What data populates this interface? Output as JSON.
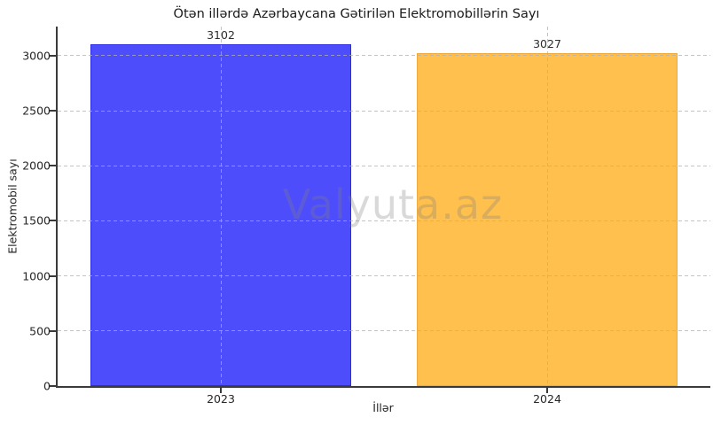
{
  "title": "Ötən illərdə Azərbaycana Gətirilən Elektromobillərin Sayı",
  "watermark": "Valyuta.az",
  "chart_data": {
    "type": "bar",
    "categories": [
      "2023",
      "2024"
    ],
    "values": [
      3102,
      3027
    ],
    "bar_labels": [
      "3102",
      "3027"
    ],
    "title": "Ötən illərdə Azərbaycana Gətirilən Elektromobillərin Sayı",
    "xlabel": "İllər",
    "ylabel": "Elektromobil sayı",
    "ylim": [
      0,
      3265
    ],
    "yticks": [
      0,
      500,
      1000,
      1500,
      2000,
      2500,
      3000
    ],
    "bar_width_fraction": 0.8,
    "grid": "dashed light-gray gridlines on both axes, drawn above bars",
    "legend": "none",
    "colors": {
      "bar_fills": [
        "#4D4DFC",
        "#FFC04D"
      ],
      "bar_edges": [
        "#2B2BE0",
        "#F2A93C"
      ],
      "grid": "#B0B0B0",
      "spine": "#3A3A3A",
      "text": "#262626",
      "watermark": "rgba(128,128,128,0.30)",
      "background": "#FFFFFF"
    }
  }
}
